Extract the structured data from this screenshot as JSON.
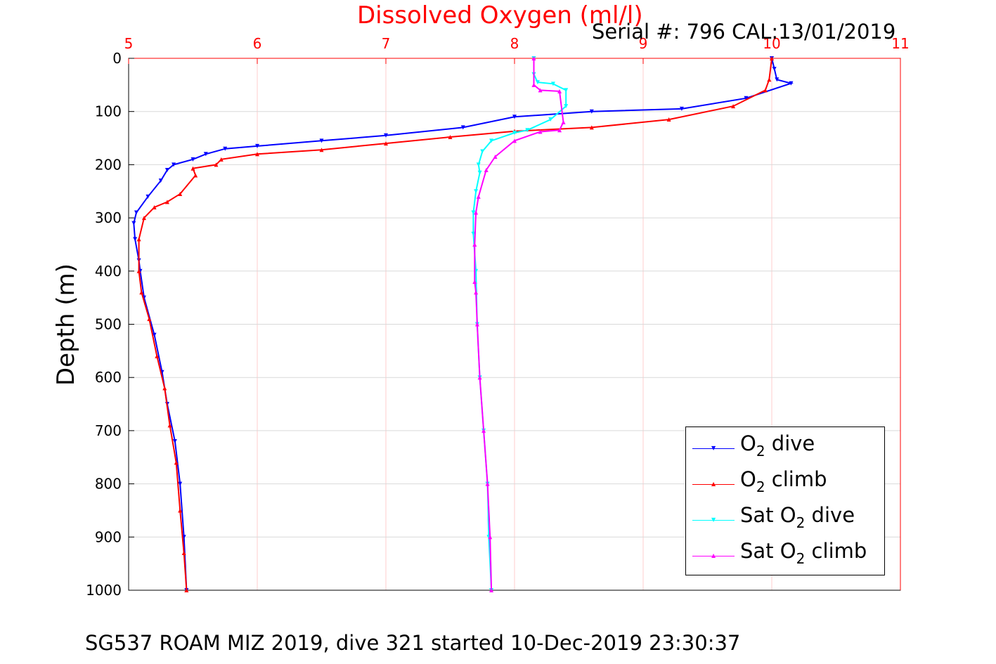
{
  "header": {
    "title": "Dissolved Oxygen (ml/l)",
    "serial": "Serial #: 796  CAL:13/01/2019"
  },
  "footer": {
    "caption": "SG537 ROAM MIZ 2019, dive 321 started 10-Dec-2019 23:30:37"
  },
  "legend": {
    "placement": "bottom-right",
    "items": [
      {
        "pre": "O",
        "sub": "2",
        "post": " dive",
        "color": "#0000ff",
        "marker": "▼"
      },
      {
        "pre": "O",
        "sub": "2",
        "post": " climb",
        "color": "#ff0000",
        "marker": "▲"
      },
      {
        "pre": "Sat O",
        "sub": "2",
        "post": " dive",
        "color": "#00ffff",
        "marker": "▼"
      },
      {
        "pre": "Sat O",
        "sub": "2",
        "post": " climb",
        "color": "#ff00ff",
        "marker": "▲"
      }
    ]
  },
  "chart_data": {
    "type": "line",
    "title": "Dissolved Oxygen (ml/l)",
    "xlabel": "",
    "ylabel": "Depth (m)",
    "xlim": [
      5,
      11
    ],
    "ylim": [
      0,
      1000
    ],
    "y_reversed": true,
    "x_axis_position": "top",
    "x_axis_color": "#ff0000",
    "xticks": [
      "5",
      "6",
      "7",
      "8",
      "9",
      "10",
      "11"
    ],
    "yticks": [
      "0",
      "100",
      "200",
      "300",
      "400",
      "500",
      "600",
      "700",
      "800",
      "900",
      "1000"
    ],
    "grid": true,
    "grid_color_x": "#ffcccc",
    "grid_color_y": "#d9d9d9",
    "series": [
      {
        "name": "O2 dive",
        "color": "#0000ff",
        "marker": "triangle-down",
        "x": [
          10.0,
          10.02,
          10.04,
          10.15,
          9.8,
          9.3,
          8.6,
          8.0,
          7.6,
          7.0,
          6.5,
          6.0,
          5.75,
          5.6,
          5.5,
          5.35,
          5.3,
          5.25,
          5.15,
          5.06,
          5.04,
          5.05,
          5.08,
          5.09,
          5.12,
          5.2,
          5.26,
          5.3,
          5.36,
          5.4,
          5.43,
          5.45
        ],
        "y": [
          0,
          20,
          40,
          47,
          75,
          95,
          100,
          110,
          130,
          145,
          155,
          165,
          170,
          180,
          190,
          200,
          210,
          230,
          260,
          290,
          310,
          340,
          380,
          400,
          450,
          520,
          590,
          650,
          720,
          800,
          900,
          1000
        ]
      },
      {
        "name": "O2 climb",
        "color": "#ff0000",
        "marker": "triangle-up",
        "x": [
          10.0,
          9.98,
          9.95,
          9.7,
          9.2,
          8.6,
          8.0,
          7.5,
          7.0,
          6.5,
          6.0,
          5.72,
          5.68,
          5.5,
          5.52,
          5.4,
          5.3,
          5.2,
          5.12,
          5.08,
          5.08,
          5.1,
          5.16,
          5.22,
          5.28,
          5.32,
          5.37,
          5.4,
          5.43,
          5.45
        ],
        "y": [
          0,
          40,
          60,
          90,
          115,
          130,
          137,
          148,
          160,
          172,
          180,
          190,
          200,
          207,
          220,
          255,
          270,
          280,
          300,
          340,
          400,
          440,
          490,
          560,
          620,
          690,
          760,
          850,
          930,
          1000
        ]
      },
      {
        "name": "Sat O2 dive",
        "color": "#00ffff",
        "marker": "triangle-down",
        "x": [
          8.15,
          8.15,
          8.18,
          8.3,
          8.4,
          8.4,
          8.28,
          8.1,
          8.0,
          7.82,
          7.75,
          7.72,
          7.73,
          7.7,
          7.68,
          7.68,
          7.7,
          7.71,
          7.73,
          7.76,
          7.79,
          7.8,
          7.82
        ],
        "y": [
          0,
          30,
          45,
          48,
          60,
          90,
          115,
          135,
          140,
          155,
          175,
          200,
          215,
          250,
          290,
          330,
          400,
          500,
          600,
          700,
          800,
          900,
          1000
        ]
      },
      {
        "name": "Sat O2 climb",
        "color": "#ff00ff",
        "marker": "triangle-up",
        "x": [
          8.15,
          8.15,
          8.2,
          8.35,
          8.38,
          8.35,
          8.2,
          8.0,
          7.85,
          7.78,
          7.72,
          7.7,
          7.69,
          7.69,
          7.7,
          7.71,
          7.73,
          7.76,
          7.79,
          7.81,
          7.82
        ],
        "y": [
          0,
          50,
          60,
          62,
          120,
          135,
          138,
          155,
          185,
          210,
          260,
          290,
          350,
          420,
          440,
          500,
          600,
          700,
          800,
          900,
          1000
        ]
      }
    ]
  }
}
